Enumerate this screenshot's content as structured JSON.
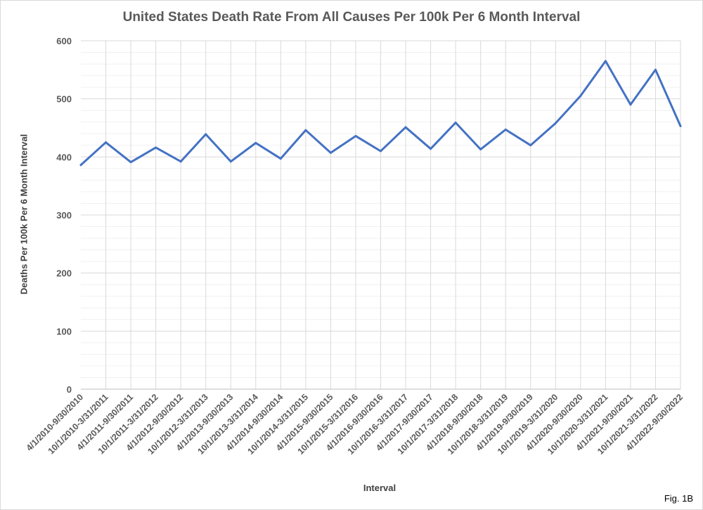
{
  "chart_data": {
    "type": "line",
    "title": "United States Death Rate From All Causes Per 100k Per 6 Month Interval",
    "xlabel": "Interval",
    "ylabel": "Deaths Per 100k Per 6 Month Interval",
    "ylim": [
      0,
      600
    ],
    "yticks": [
      0,
      100,
      200,
      300,
      400,
      500,
      600
    ],
    "grid": true,
    "legend": "none",
    "line_color": "#4472c4",
    "categories": [
      "4/1/2010-9/30/2010",
      "10/1/2010-3/31/2011",
      "4/1/2011-9/30/2011",
      "10/1/2011-3/31/2012",
      "4/1/2012-9/30/2012",
      "10/1/2012-3/31/2013",
      "4/1/2013-9/30/2013",
      "10/1/2013-3/31/2014",
      "4/1/2014-9/30/2014",
      "10/1/2014-3/31/2015",
      "4/1/2015-9/30/2015",
      "10/1/2015-3/31/2016",
      "4/1/2016-9/30/2016",
      "10/1/2016-3/31/2017",
      "4/1/2017-9/30/2017",
      "10/1/2017-3/31/2018",
      "4/1/2018-9/30/2018",
      "10/1/2018-3/31/2019",
      "4/1/2019-9/30/2019",
      "10/1/2019-3/31/2020",
      "4/1/2020-9/30/2020",
      "10/1/2020-3/31/2021",
      "4/1/2021-9/30/2021",
      "10/1/2021-3/31/2022",
      "4/1/2022-9/30/2022"
    ],
    "values": [
      386,
      425,
      391,
      416,
      392,
      439,
      392,
      424,
      397,
      446,
      407,
      436,
      410,
      451,
      414,
      459,
      413,
      447,
      420,
      458,
      505,
      565,
      490,
      550,
      453
    ]
  },
  "figure_label": "Fig. 1B"
}
